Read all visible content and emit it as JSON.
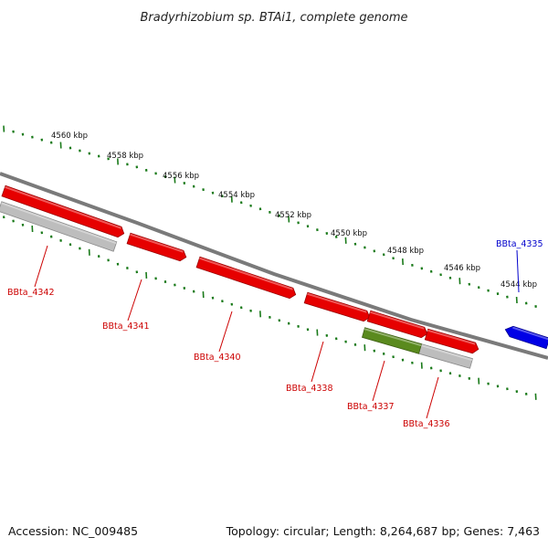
{
  "title": "Bradyrhizobium sp. BTAi1, complete genome",
  "footer": {
    "accession": "Accession: NC_009485",
    "topology": "Topology: circular; Length: 8,264,687 bp; Genes: 7,463"
  },
  "colors": {
    "forward_gene": "#e60000",
    "reverse_gene_blue": "#0000e6",
    "pseudo_gene": "#bdbdbd",
    "rna_gene": "#5a8a1e",
    "tick": "#1a7a1a",
    "backbone": "#808080",
    "red_label": "#cc0000",
    "blue_label": "#0000cc"
  },
  "kbp_labels": [
    "4560 kbp",
    "4558 kbp",
    "4556 kbp",
    "4554 kbp",
    "4552 kbp",
    "4550 kbp",
    "4548 kbp",
    "4546 kbp",
    "4544 kbp"
  ],
  "genes": [
    {
      "id": "BBta_4342",
      "strand": "+",
      "color_key": "forward_gene",
      "label_color": "red_label"
    },
    {
      "id": "BBta_4341",
      "strand": "+",
      "color_key": "forward_gene",
      "label_color": "red_label"
    },
    {
      "id": "BBta_4340",
      "strand": "+",
      "color_key": "forward_gene",
      "label_color": "red_label"
    },
    {
      "id": "BBta_4338",
      "strand": "+",
      "color_key": "forward_gene",
      "label_color": "red_label"
    },
    {
      "id": "BBta_4337",
      "strand": "+",
      "color_key": "rna_gene",
      "label_color": "red_label"
    },
    {
      "id": "BBta_4336",
      "strand": "+",
      "color_key": "forward_gene",
      "label_color": "red_label"
    },
    {
      "id": "BBta_4335",
      "strand": "-",
      "color_key": "reverse_gene_blue",
      "label_color": "blue_label"
    }
  ]
}
